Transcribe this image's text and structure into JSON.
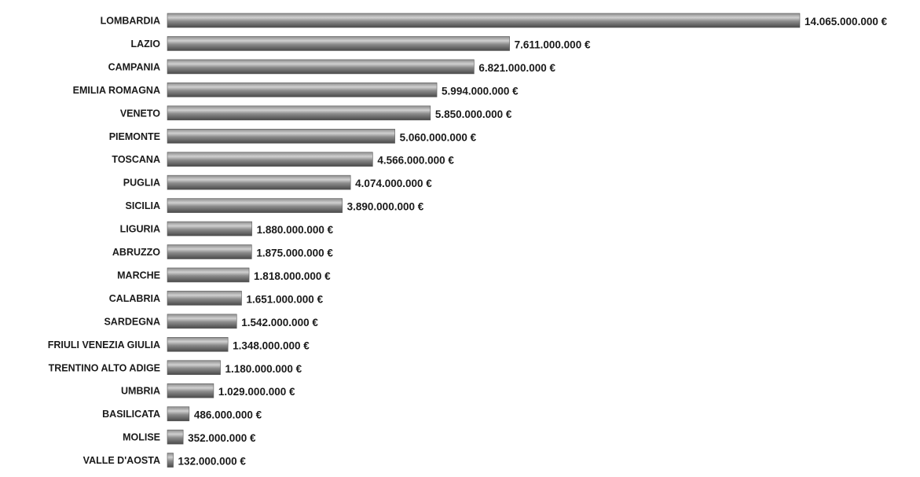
{
  "chart_data": {
    "type": "bar",
    "orientation": "horizontal",
    "categories": [
      "LOMBARDIA",
      "LAZIO",
      "CAMPANIA",
      "EMILIA ROMAGNA",
      "VENETO",
      "PIEMONTE",
      "TOSCANA",
      "PUGLIA",
      "SICILIA",
      "LIGURIA",
      "ABRUZZO",
      "MARCHE",
      "CALABRIA",
      "SARDEGNA",
      "FRIULI VENEZIA GIULIA",
      "TRENTINO ALTO ADIGE",
      "UMBRIA",
      "BASILICATA",
      "MOLISE",
      "VALLE D'AOSTA"
    ],
    "values": [
      14065000000,
      7611000000,
      6821000000,
      5994000000,
      5850000000,
      5060000000,
      4566000000,
      4074000000,
      3890000000,
      1880000000,
      1875000000,
      1818000000,
      1651000000,
      1542000000,
      1348000000,
      1180000000,
      1029000000,
      486000000,
      352000000,
      132000000
    ],
    "data_labels": [
      "14.065.000.000 €",
      "7.611.000.000 €",
      "6.821.000.000 €",
      "5.994.000.000 €",
      "5.850.000.000 €",
      "5.060.000.000 €",
      "4.566.000.000 €",
      "4.074.000.000 €",
      "3.890.000.000 €",
      "1.880.000.000 €",
      "1.875.000.000 €",
      "1.818.000.000 €",
      "1.651.000.000 €",
      "1.542.000.000 €",
      "1.348.000.000 €",
      "1.180.000.000 €",
      "1.029.000.000 €",
      "486.000.000 €",
      "352.000.000 €",
      "132.000.000 €"
    ],
    "title": "",
    "xlabel": "",
    "ylabel": "",
    "grid": false,
    "legend": "none",
    "colors": {
      "bar_dark": "#4a4a4a",
      "bar_mid": "#8c8c8c",
      "bar_light": "#d0d0d0",
      "text": "#1a1a1a"
    }
  }
}
